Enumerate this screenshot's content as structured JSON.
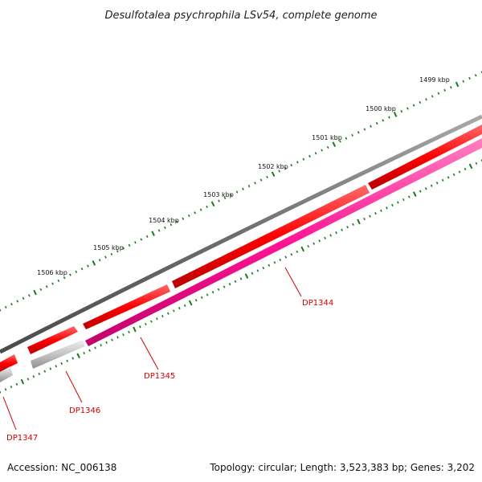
{
  "title": "Desulfotalea psychrophila LSv54, complete genome",
  "footer": {
    "accession": "Accession: NC_006138",
    "summary": "Topology: circular; Length: 3,523,383 bp; Genes: 3,202"
  },
  "kbp_labels": [
    "1499 kbp",
    "1500 kbp",
    "1501 kbp",
    "1502 kbp",
    "1503 kbp",
    "1504 kbp",
    "1505 kbp",
    "1506 kbp"
  ],
  "gene_labels": [
    "DP1344",
    "DP1345",
    "DP1346",
    "DP1347"
  ],
  "colors": {
    "backbone": "#6e6e6e",
    "forward_gene": "#ff0000",
    "reverse_gene": "#ff1493",
    "gray_gene": "#bdbdbd",
    "tick": "#1a7a1a",
    "label": "#d00000"
  }
}
